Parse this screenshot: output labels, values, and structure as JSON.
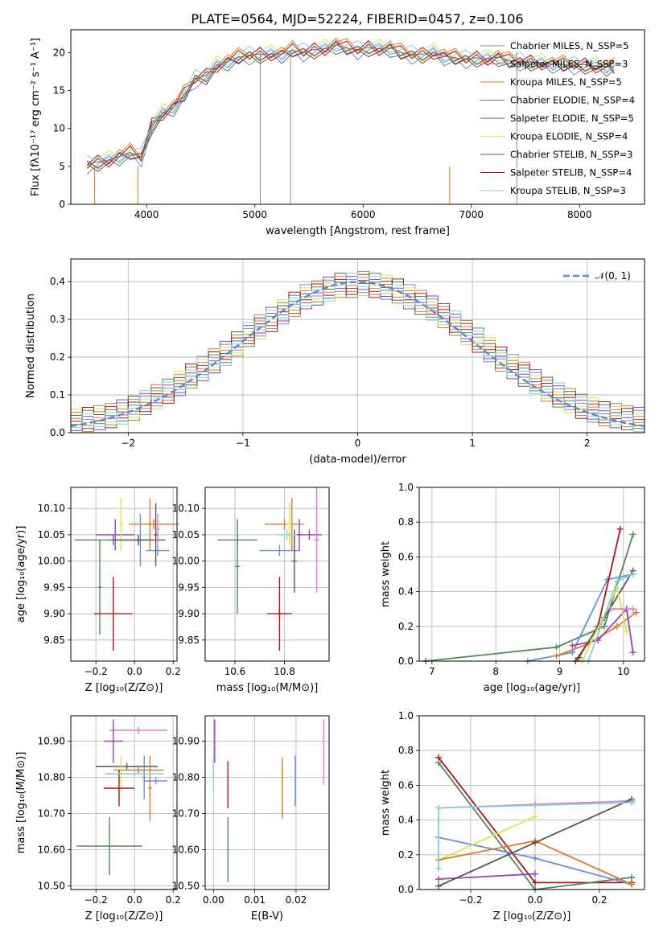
{
  "figure_title": "PLATE=0564, MJD=52224, FIBERID=0457, z=0.106",
  "colors": {
    "Chabrier MILES": "#6a8ed8",
    "Salpeter MILES": "#e07b20",
    "Kroupa MILES": "#e07b20",
    "Chabrier ELODIE": "#4e8a5a",
    "Salpeter ELODIE": "#9b3fb8",
    "Kroupa ELODIE": "#d5e84b",
    "Chabrier STELIB": "#555555",
    "Salpeter STELIB": "#b5121b",
    "Kroupa STELIB": "#7fd3e0",
    "extra": "#e07bc0"
  },
  "chart_data": [
    {
      "type": "line",
      "title": "PLATE=0564, MJD=52224, FIBERID=0457, z=0.106",
      "xlabel": "wavelength [Angstrom, rest frame]",
      "ylabel": "Flux [fλ10⁻¹⁷ erg cm⁻² s⁻¹ A⁻¹]",
      "xlim": [
        3300,
        8600
      ],
      "ylim": [
        0,
        23
      ],
      "xticks": [
        4000,
        5000,
        6000,
        7000,
        8000
      ],
      "yticks": [
        0,
        5,
        10,
        15,
        20
      ],
      "legend_position": "right",
      "legend": [
        "Chabrier MILES, N_SSP=5",
        "Salpeter MILES, N_SSP=3",
        "Kroupa MILES, N_SSP=5",
        "Chabrier ELODIE, N_SSP=4",
        "Salpeter ELODIE, N_SSP=5",
        "Kroupa ELODIE, N_SSP=4",
        "Chabrier STELIB, N_SSP=3",
        "Salpeter STELIB, N_SSP=4",
        "Kroupa STELIB, N_SSP=3"
      ],
      "x": [
        3450,
        3550,
        3650,
        3750,
        3850,
        3950,
        4050,
        4150,
        4250,
        4350,
        4450,
        4550,
        4650,
        4750,
        4850,
        4950,
        5050,
        5150,
        5250,
        5350,
        5450,
        5550,
        5650,
        5750,
        5850,
        5950,
        6050,
        6150,
        6250,
        6350,
        6450,
        6550,
        6650,
        6750,
        6850,
        6950,
        7050,
        7150,
        7250,
        7350,
        7450,
        7550,
        7650,
        7750,
        7850,
        7950,
        8050,
        8150,
        8250,
        8320
      ],
      "y": [
        5.2,
        5.6,
        5.8,
        6.3,
        6.8,
        6.2,
        10.5,
        12.0,
        12.8,
        14.5,
        16.5,
        17.0,
        18.3,
        18.8,
        19.4,
        19.6,
        19.8,
        19.8,
        19.8,
        20.3,
        20.0,
        20.4,
        20.5,
        21.0,
        20.6,
        20.3,
        20.7,
        20.5,
        20.6,
        20.0,
        19.7,
        19.8,
        20.0,
        19.5,
        19.3,
        19.1,
        19.3,
        19.2,
        19.4,
        18.9,
        18.8,
        18.8,
        18.6,
        18.5,
        18.4,
        18.3,
        18.4,
        18.2,
        18.1,
        18.1
      ]
    },
    {
      "type": "area",
      "xlabel": "(data-model)/error",
      "ylabel": "Normed distribution",
      "xlim": [
        -2.5,
        2.5
      ],
      "ylim": [
        0,
        0.46
      ],
      "xticks": [
        -2,
        -1,
        0,
        1,
        2
      ],
      "yticks": [
        0.0,
        0.1,
        0.2,
        0.3,
        0.4
      ],
      "grid": true,
      "legend_position": "top-right",
      "legend": [
        "𝒩(0, 1)"
      ],
      "normal_curve": {
        "mean": 0,
        "sigma": 1
      },
      "bins": [
        -2.5,
        -2.4,
        -2.3,
        -2.2,
        -2.1,
        -2.0,
        -1.9,
        -1.8,
        -1.7,
        -1.6,
        -1.5,
        -1.4,
        -1.3,
        -1.2,
        -1.1,
        -1.0,
        -0.9,
        -0.8,
        -0.7,
        -0.6,
        -0.5,
        -0.4,
        -0.3,
        -0.2,
        -0.1,
        0.0,
        0.1,
        0.2,
        0.3,
        0.4,
        0.5,
        0.6,
        0.7,
        0.8,
        0.9,
        1.0,
        1.1,
        1.2,
        1.3,
        1.4,
        1.5,
        1.6,
        1.7,
        1.8,
        1.9,
        2.0,
        2.1,
        2.2,
        2.3,
        2.4,
        2.5
      ],
      "counts": [
        0.03,
        0.035,
        0.04,
        0.045,
        0.055,
        0.065,
        0.08,
        0.095,
        0.11,
        0.13,
        0.15,
        0.17,
        0.19,
        0.21,
        0.235,
        0.26,
        0.28,
        0.3,
        0.32,
        0.34,
        0.36,
        0.37,
        0.38,
        0.39,
        0.39,
        0.395,
        0.39,
        0.385,
        0.375,
        0.36,
        0.345,
        0.33,
        0.31,
        0.29,
        0.265,
        0.245,
        0.22,
        0.195,
        0.175,
        0.155,
        0.135,
        0.115,
        0.1,
        0.085,
        0.07,
        0.06,
        0.05,
        0.045,
        0.04,
        0.035
      ]
    },
    {
      "type": "scatter",
      "xlabel": "Z [log₁₀(Z/Z⊙)]",
      "ylabel": "age  [log₁₀(age/yr)]",
      "xlim": [
        -0.33,
        0.22
      ],
      "ylim": [
        9.81,
        10.14
      ],
      "xticks": [
        -0.2,
        0.0,
        0.2
      ],
      "yticks": [
        9.85,
        9.9,
        9.95,
        10.0,
        10.05,
        10.1
      ],
      "grid": true,
      "points": [
        {
          "color": "#6a8ed8",
          "x": 0.03,
          "xerr": 0.01,
          "y": 10.04,
          "yerr": 0.05
        },
        {
          "color": "#6a8ed8",
          "x": 0.12,
          "xerr": 0.06,
          "y": 10.02,
          "yerr": 0.01
        },
        {
          "color": "#e07b20",
          "x": 0.1,
          "xerr": 0.13,
          "y": 10.07,
          "yerr": 0.01
        },
        {
          "color": "#e07b20",
          "x": 0.08,
          "xerr": 0.01,
          "y": 10.07,
          "yerr": 0.05
        },
        {
          "color": "#4e8a5a",
          "x": -0.11,
          "xerr": 0.2,
          "y": 10.04,
          "yerr": 0.01
        },
        {
          "color": "#4e8a5a",
          "x": -0.18,
          "xerr": 0.01,
          "y": 9.95,
          "yerr": 0.09
        },
        {
          "color": "#9b3fb8",
          "x": -0.1,
          "xerr": 0.1,
          "y": 10.05,
          "yerr": 0.03
        },
        {
          "color": "#d5e84b",
          "x": -0.07,
          "xerr": 0.01,
          "y": 10.07,
          "yerr": 0.05
        },
        {
          "color": "#555555",
          "x": 0.02,
          "xerr": 0.14,
          "y": 10.04,
          "yerr": 0.01
        },
        {
          "color": "#555555",
          "x": 0.11,
          "xerr": 0.01,
          "y": 10.05,
          "yerr": 0.06
        },
        {
          "color": "#b5121b",
          "x": -0.11,
          "xerr": 0.1,
          "y": 9.9,
          "yerr": 0.07
        },
        {
          "color": "#e07bc0",
          "x": 0.12,
          "xerr": 0.01,
          "y": 10.06,
          "yerr": 0.03
        }
      ]
    },
    {
      "type": "scatter",
      "xlabel": "mass [log₁₀(M/M⊙)]",
      "ylabel": "",
      "xlim": [
        10.48,
        10.98
      ],
      "ylim": [
        9.81,
        10.14
      ],
      "xticks": [
        10.6,
        10.8
      ],
      "yticks": [
        9.85,
        9.9,
        9.95,
        10.0,
        10.05,
        10.1
      ],
      "grid": true,
      "points": [
        {
          "color": "#6a8ed8",
          "x": 10.78,
          "xerr": 0.08,
          "y": 10.02,
          "yerr": 0.01
        },
        {
          "color": "#e07b20",
          "x": 10.8,
          "xerr": 0.08,
          "y": 10.07,
          "yerr": 0.01
        },
        {
          "color": "#e07b20",
          "x": 10.83,
          "xerr": 0.01,
          "y": 10.07,
          "yerr": 0.05
        },
        {
          "color": "#4e8a5a",
          "x": 10.61,
          "xerr": 0.08,
          "y": 10.04,
          "yerr": 0.01
        },
        {
          "color": "#4e8a5a",
          "x": 10.61,
          "xerr": 0.01,
          "y": 9.99,
          "yerr": 0.09
        },
        {
          "color": "#9b3fb8",
          "x": 10.9,
          "xerr": 0.05,
          "y": 10.05,
          "yerr": 0.01
        },
        {
          "color": "#9b3fb8",
          "x": 10.86,
          "xerr": 0.01,
          "y": 10.05,
          "yerr": 0.03
        },
        {
          "color": "#d5e84b",
          "x": 10.82,
          "xerr": 0.01,
          "y": 10.07,
          "yerr": 0.04
        },
        {
          "color": "#555555",
          "x": 10.84,
          "xerr": 0.01,
          "y": 10.0,
          "yerr": 0.06
        },
        {
          "color": "#b5121b",
          "x": 10.78,
          "xerr": 0.05,
          "y": 9.9,
          "yerr": 0.01
        },
        {
          "color": "#b5121b",
          "x": 10.78,
          "xerr": 0.01,
          "y": 9.9,
          "yerr": 0.07
        },
        {
          "color": "#e07bc0",
          "x": 10.93,
          "xerr": 0.01,
          "y": 10.04,
          "yerr": 0.1
        },
        {
          "color": "#7fd3e0",
          "x": 10.81,
          "xerr": 0.04,
          "y": 10.05,
          "yerr": 0.01
        }
      ]
    },
    {
      "type": "line",
      "xlabel": "age  [log₁₀(age/yr)]",
      "ylabel": "mass weight",
      "xlim": [
        6.8,
        10.33
      ],
      "ylim": [
        0.0,
        1.0
      ],
      "xticks": [
        7,
        8,
        9,
        10
      ],
      "yticks": [
        0.0,
        0.2,
        0.4,
        0.6,
        0.8,
        1.0
      ],
      "grid": true,
      "series": [
        {
          "color": "#4e8a5a",
          "x": [
            6.9,
            8.95,
            9.7,
            10.15
          ],
          "y": [
            0.0,
            0.08,
            0.2,
            0.73
          ]
        },
        {
          "color": "#6a8ed8",
          "x": [
            8.5,
            9.2,
            9.75,
            10.15
          ],
          "y": [
            0.0,
            0.05,
            0.47,
            0.5
          ]
        },
        {
          "color": "#b5121b",
          "x": [
            9.3,
            9.6,
            9.95
          ],
          "y": [
            0.02,
            0.2,
            0.76
          ]
        },
        {
          "color": "#e07b20",
          "x": [
            8.95,
            9.45,
            9.9,
            10.2
          ],
          "y": [
            0.03,
            0.1,
            0.2,
            0.28
          ]
        },
        {
          "color": "#9b3fb8",
          "x": [
            9.2,
            9.6,
            10.05,
            10.15
          ],
          "y": [
            0.09,
            0.12,
            0.3,
            0.05
          ]
        },
        {
          "color": "#555555",
          "x": [
            9.25,
            9.7,
            10.15
          ],
          "y": [
            0.0,
            0.25,
            0.52
          ]
        },
        {
          "color": "#d5e84b",
          "x": [
            9.35,
            9.9,
            10.05
          ],
          "y": [
            0.0,
            0.42,
            0.17
          ]
        },
        {
          "color": "#7fd3e0",
          "x": [
            9.45,
            9.9,
            10.15
          ],
          "y": [
            0.0,
            0.46,
            0.5
          ]
        },
        {
          "color": "#e07bc0",
          "x": [
            9.8,
            10.15
          ],
          "y": [
            0.3,
            0.3
          ]
        }
      ]
    },
    {
      "type": "scatter",
      "xlabel": "Z [log₁₀(Z/Z⊙)]",
      "ylabel": "mass [log₁₀(M/M⊙)]",
      "xlim": [
        -0.33,
        0.22
      ],
      "ylim": [
        10.49,
        10.97
      ],
      "xticks": [
        -0.2,
        0.0,
        0.2
      ],
      "yticks": [
        10.5,
        10.6,
        10.7,
        10.8,
        10.9
      ],
      "grid": true,
      "points": [
        {
          "color": "#e07bc0",
          "x": 0.02,
          "xerr": 0.15,
          "y": 10.93,
          "yerr": 0.01
        },
        {
          "color": "#9b3fb8",
          "x": -0.11,
          "xerr": 0.05,
          "y": 10.9,
          "yerr": 0.06
        },
        {
          "color": "#555555",
          "x": -0.04,
          "xerr": 0.16,
          "y": 10.83,
          "yerr": 0.01
        },
        {
          "color": "#e07b20",
          "x": 0.02,
          "xerr": 0.13,
          "y": 10.82,
          "yerr": 0.01
        },
        {
          "color": "#e07b20",
          "x": 0.08,
          "xerr": 0.01,
          "y": 10.77,
          "yerr": 0.09
        },
        {
          "color": "#6a8ed8",
          "x": 0.11,
          "xerr": 0.06,
          "y": 10.79,
          "yerr": 0.01
        },
        {
          "color": "#6a8ed8",
          "x": 0.05,
          "xerr": 0.01,
          "y": 10.8,
          "yerr": 0.06
        },
        {
          "color": "#d5e84b",
          "x": -0.07,
          "xerr": 0.08,
          "y": 10.81,
          "yerr": 0.05
        },
        {
          "color": "#b5121b",
          "x": -0.08,
          "xerr": 0.08,
          "y": 10.77,
          "yerr": 0.05
        },
        {
          "color": "#7fd3e0",
          "x": 0.0,
          "xerr": 0.15,
          "y": 10.81,
          "yerr": 0.01
        },
        {
          "color": "#4e8a5a",
          "x": -0.13,
          "xerr": 0.17,
          "y": 10.61,
          "yerr": 0.08
        }
      ]
    },
    {
      "type": "scatter",
      "xlabel": "E(B-V)",
      "ylabel": "",
      "xlim": [
        -0.002,
        0.028
      ],
      "ylim": [
        10.49,
        10.97
      ],
      "xticks": [
        0.0,
        0.01,
        0.02
      ],
      "yticks": [
        10.5,
        10.6,
        10.7,
        10.8,
        10.9
      ],
      "grid": true,
      "points": [
        {
          "color": "#9b3fb8",
          "x": 0.0003,
          "xerr": 0.0,
          "y": 10.9,
          "yerr": 0.06
        },
        {
          "color": "#7fd3e0",
          "x": 0.0,
          "xerr": 0.0,
          "y": 10.81,
          "yerr": 0.05
        },
        {
          "color": "#b5121b",
          "x": 0.0035,
          "xerr": 0.0,
          "y": 10.78,
          "yerr": 0.065
        },
        {
          "color": "#4e8a5a",
          "x": 0.0035,
          "xerr": 0.0,
          "y": 10.6,
          "yerr": 0.09
        },
        {
          "color": "#e07b20",
          "x": 0.0167,
          "xerr": 0.0,
          "y": 10.77,
          "yerr": 0.085
        },
        {
          "color": "#6a8ed8",
          "x": 0.0198,
          "xerr": 0.0,
          "y": 10.79,
          "yerr": 0.07
        },
        {
          "color": "#e07bc0",
          "x": 0.0267,
          "xerr": 0.0,
          "y": 10.87,
          "yerr": 0.09
        }
      ]
    },
    {
      "type": "line",
      "xlabel": "Z [log₁₀(Z/Z⊙)]",
      "ylabel": "mass weight",
      "xlim": [
        -0.36,
        0.34
      ],
      "ylim": [
        0.0,
        1.0
      ],
      "xticks": [
        -0.2,
        0.0,
        0.2
      ],
      "yticks": [
        0.0,
        0.2,
        0.4,
        0.6,
        0.8,
        1.0
      ],
      "grid": true,
      "series": [
        {
          "color": "#b5121b",
          "x": [
            -0.3,
            0.0,
            0.3
          ],
          "y": [
            0.76,
            0.04,
            0.04
          ]
        },
        {
          "color": "#4e8a5a",
          "x": [
            -0.3,
            0.0,
            0.3
          ],
          "y": [
            0.73,
            0.0,
            0.07
          ]
        },
        {
          "color": "#e07bc0",
          "x": [
            -0.3,
            0.0,
            0.3
          ],
          "y": [
            0.47,
            0.49,
            0.51
          ]
        },
        {
          "color": "#6a8ed8",
          "x": [
            -0.3,
            0.0,
            0.3
          ],
          "y": [
            0.3,
            0.18,
            0.03
          ]
        },
        {
          "color": "#d5e84b",
          "x": [
            -0.3,
            0.0
          ],
          "y": [
            0.17,
            0.42
          ]
        },
        {
          "color": "#e07b20",
          "x": [
            -0.3,
            0.0,
            0.3
          ],
          "y": [
            0.17,
            0.28,
            0.03
          ]
        },
        {
          "color": "#9b3fb8",
          "x": [
            -0.3,
            0.0
          ],
          "y": [
            0.06,
            0.09
          ]
        },
        {
          "color": "#555555",
          "x": [
            -0.3,
            0.0,
            0.3
          ],
          "y": [
            0.02,
            0.27,
            0.52
          ]
        },
        {
          "color": "#7fd3e0",
          "x": [
            -0.3,
            -0.3,
            0.3
          ],
          "y": [
            0.12,
            0.47,
            0.5
          ]
        }
      ]
    }
  ]
}
